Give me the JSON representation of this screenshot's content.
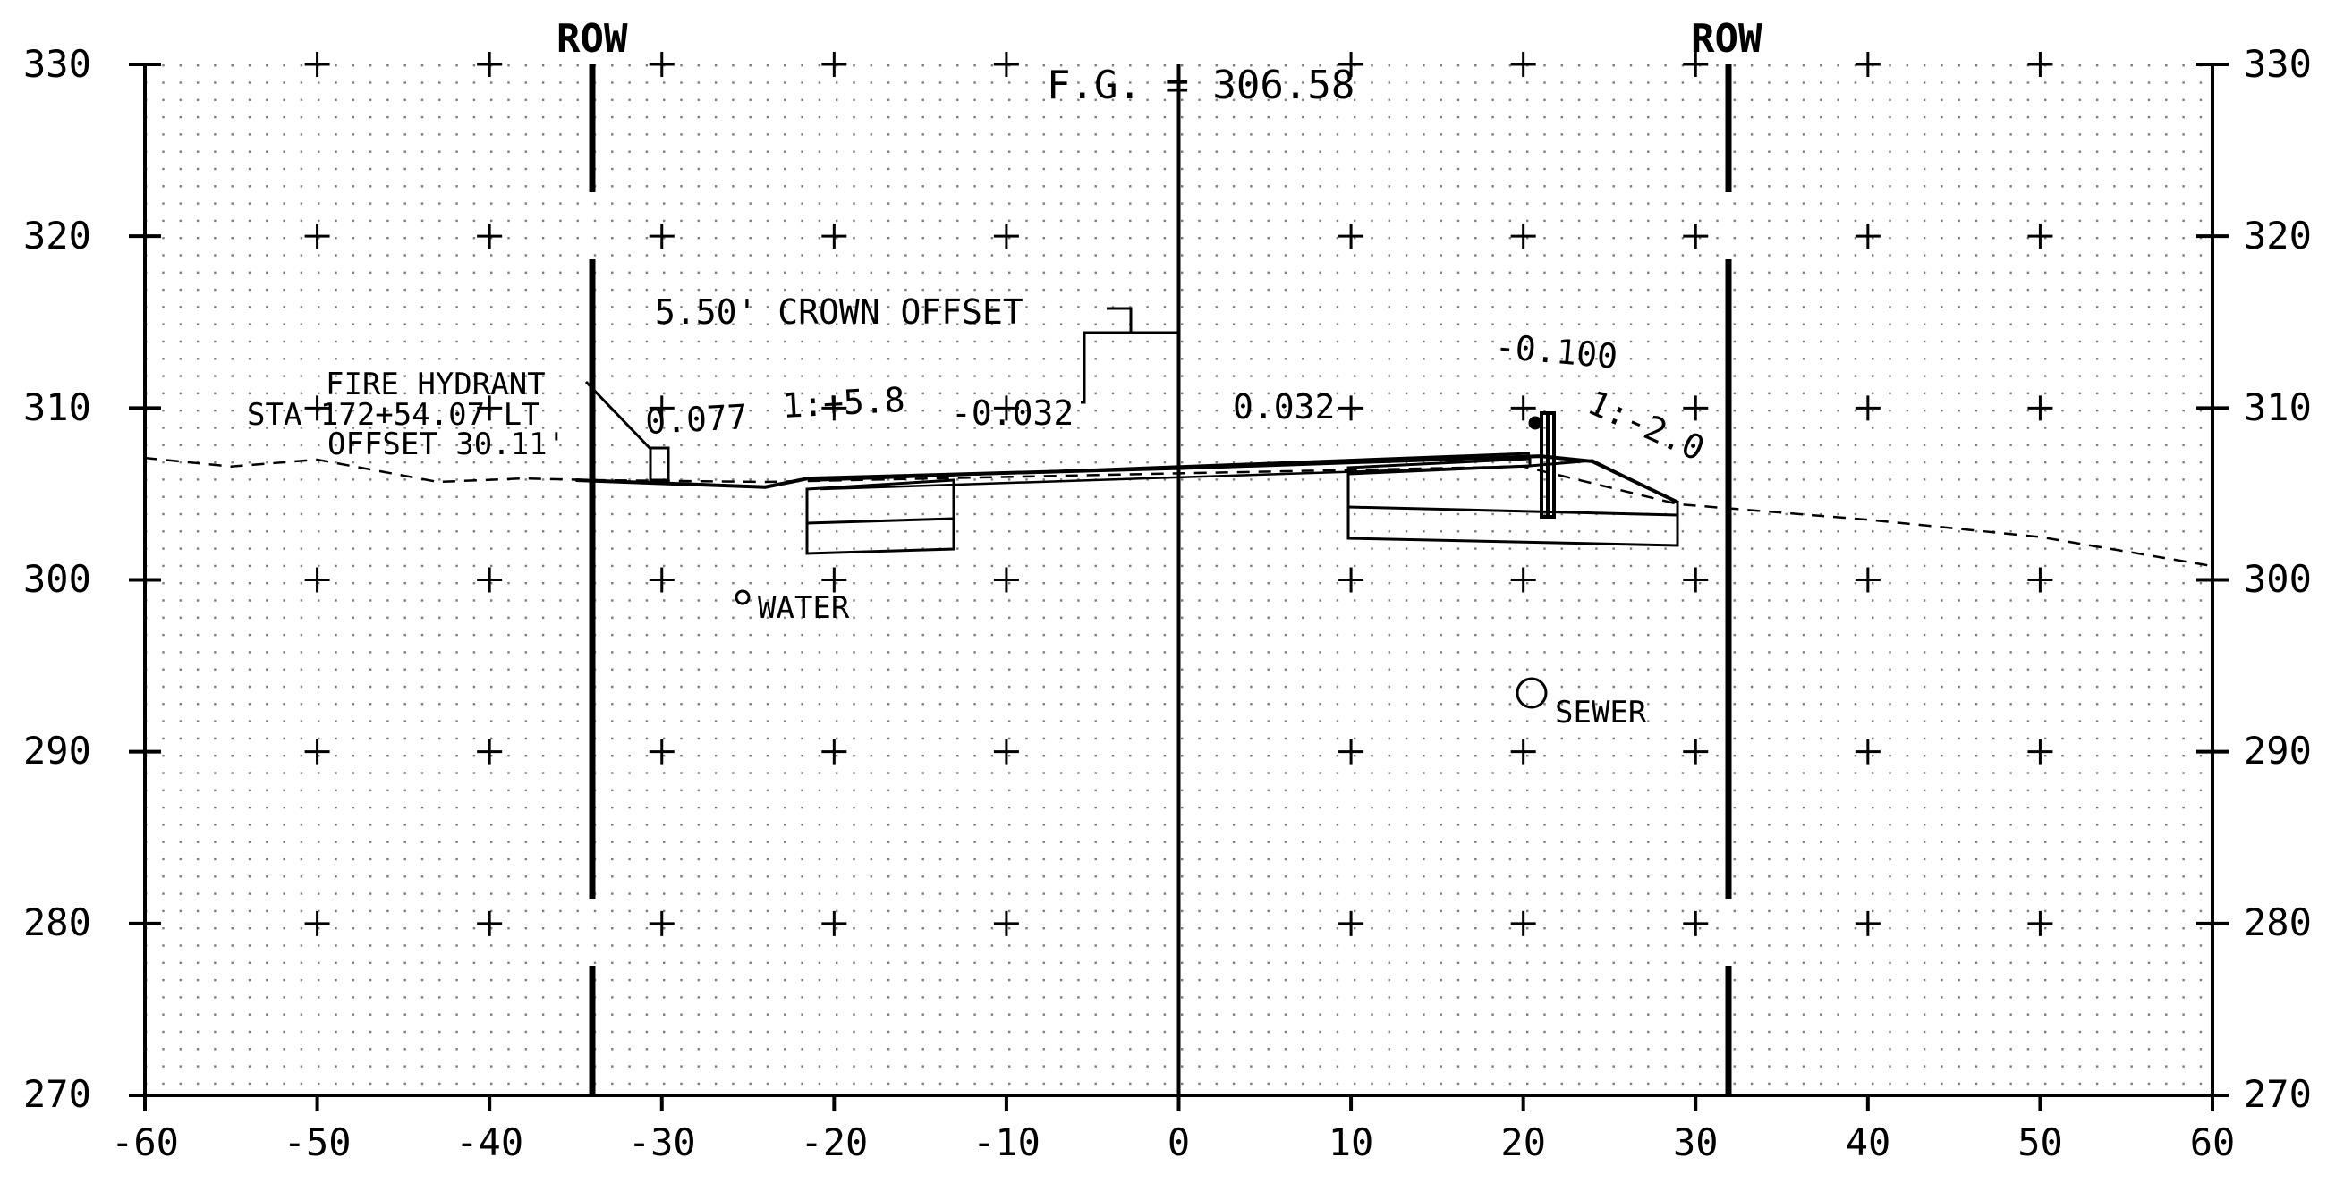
{
  "x_ticks": [
    "-60",
    "-50",
    "-40",
    "-30",
    "-20",
    "-10",
    "0",
    "10",
    "20",
    "30",
    "40",
    "50",
    "60"
  ],
  "y_ticks": [
    "330",
    "320",
    "310",
    "300",
    "290",
    "280",
    "270"
  ],
  "annotations": {
    "row_left": "ROW",
    "row_right": "ROW",
    "finish_grade": "F.G. = 306.58",
    "crown_offset": "5.50' CROWN OFFSET",
    "fire_hydrant_line1": "FIRE HYDRANT",
    "fire_hydrant_line2": "STA 172+54.07 LT",
    "fire_hydrant_line3": "OFFSET 30.11'",
    "slope_left_1": "0.077",
    "slope_left_2": "1:+5.8",
    "slope_center_left": "-0.032",
    "slope_center_right": "0.032",
    "slope_right_1": "-0.100",
    "slope_right_2": "1:-2.0",
    "water_label": "WATER",
    "sewer_label": "SEWER"
  },
  "chart_data": {
    "type": "cross-section",
    "xlim": [
      -60,
      60
    ],
    "ylim": [
      270,
      330
    ],
    "x_step": 10,
    "y_step": 10,
    "row_offsets": [
      -34,
      32.2
    ],
    "existing_ground": [
      [
        -60,
        307.1
      ],
      [
        -55,
        306.6
      ],
      [
        -50,
        307.0
      ],
      [
        -43,
        305.7
      ],
      [
        -38,
        305.9
      ],
      [
        -34,
        305.8
      ],
      [
        -24,
        305.7
      ],
      [
        0,
        306.2
      ],
      [
        20,
        306.6
      ],
      [
        29,
        304.4
      ],
      [
        40,
        303.5
      ],
      [
        50,
        302.5
      ],
      [
        60,
        300.8
      ]
    ],
    "proposed_surface": [
      [
        -35,
        305.8
      ],
      [
        -24,
        305.4
      ],
      [
        -21.5,
        305.9
      ],
      [
        0,
        306.5
      ],
      [
        21,
        307.2
      ],
      [
        24,
        306.9
      ],
      [
        29,
        304.5
      ]
    ],
    "water_main": [
      -25.8,
      298.8
    ],
    "sewer_main": [
      20.4,
      293.5
    ],
    "fire_hydrant": [
      -30.1,
      306.5
    ]
  }
}
